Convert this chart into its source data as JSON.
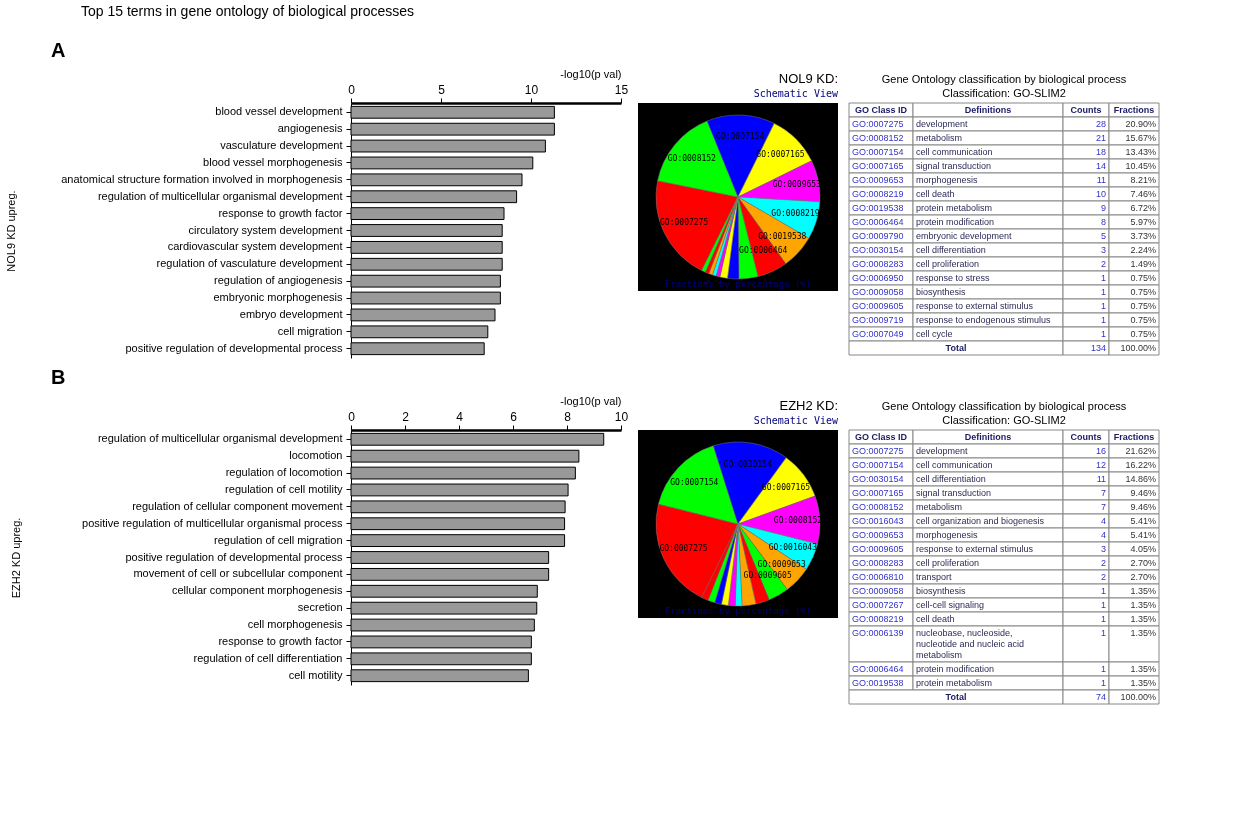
{
  "chart_data": [
    {
      "type": "bar",
      "orientation": "horizontal",
      "title": "Top 15 terms in gene ontology of biological processes",
      "annotations": [
        "A"
      ],
      "xlabel": "-log10(p val)",
      "ylabel": "NOL9 KD upreg.",
      "color": "#999999",
      "categories": [
        "blood vessel development",
        "angiogenesis",
        "vasculature development",
        "blood vessel morphogenesis",
        "anatomical structure formation involved in morphogenesis",
        "regulation of multicellular organismal development",
        "response to growth factor",
        "circulatory system development",
        "cardiovascular system development",
        "regulation of vasculature development",
        "regulation of angiogenesis",
        "embryonic morphogenesis",
        "embryo development",
        "cell migration",
        "positive regulation of developmental process"
      ],
      "values": [
        11.3,
        11.3,
        10.8,
        10.1,
        9.5,
        9.2,
        8.5,
        8.4,
        8.4,
        8.4,
        8.3,
        8.3,
        8.0,
        7.6,
        7.4
      ],
      "xlim": [
        0,
        15
      ],
      "xticks": [
        0,
        5,
        10,
        15
      ]
    },
    {
      "type": "pie",
      "title": "NOL9 KD:",
      "subtitle": "Schematic View",
      "annotations": [
        "Fractions by percentage (%)"
      ],
      "categories": [
        "GO:0007275",
        "GO:0008152",
        "GO:0007154",
        "GO:0007165",
        "GO:0009653",
        "GO:0008219",
        "GO:0019538",
        "GO:0006464",
        null,
        null,
        null,
        null,
        null,
        null,
        null,
        null
      ],
      "values": [
        20.9,
        15.67,
        13.43,
        10.45,
        8.21,
        7.46,
        6.72,
        5.97,
        3.73,
        2.24,
        1.49,
        0.75,
        0.75,
        0.75,
        0.75,
        0.75
      ],
      "colors": [
        "#ff0000",
        "#00ff00",
        "#0000ff",
        "#ffff00",
        "#ff00ff",
        "#00ffff",
        "#ffa500",
        "#ff0000",
        "#00ff00",
        "#0000ff",
        "#ffff00",
        "#ff00ff",
        "#00ffff",
        "#ffa500",
        "#ff0000",
        "#00ff00"
      ]
    },
    {
      "type": "other",
      "title": "Gene Ontology classification by biological process",
      "subtitle": "Classification: GO-SLIM2",
      "categories": [
        "GO Class ID",
        "Definitions",
        "Counts",
        "Fractions"
      ],
      "cell_labels": [
        [
          "GO:0007275",
          "development",
          "28",
          "20.90%"
        ],
        [
          "GO:0008152",
          "metabolism",
          "21",
          "15.67%"
        ],
        [
          "GO:0007154",
          "cell communication",
          "18",
          "13.43%"
        ],
        [
          "GO:0007165",
          "signal transduction",
          "14",
          "10.45%"
        ],
        [
          "GO:0009653",
          "morphogenesis",
          "11",
          "8.21%"
        ],
        [
          "GO:0008219",
          "cell death",
          "10",
          "7.46%"
        ],
        [
          "GO:0019538",
          "protein metabolism",
          "9",
          "6.72%"
        ],
        [
          "GO:0006464",
          "protein modification",
          "8",
          "5.97%"
        ],
        [
          "GO:0009790",
          "embryonic development",
          "5",
          "3.73%"
        ],
        [
          "GO:0030154",
          "cell differentiation",
          "3",
          "2.24%"
        ],
        [
          "GO:0008283",
          "cell proliferation",
          "2",
          "1.49%"
        ],
        [
          "GO:0006950",
          "response to stress",
          "1",
          "0.75%"
        ],
        [
          "GO:0009058",
          "biosynthesis",
          "1",
          "0.75%"
        ],
        [
          "GO:0009605",
          "response to external stimulus",
          "1",
          "0.75%"
        ],
        [
          "GO:0009719",
          "response to endogenous stimulus",
          "1",
          "0.75%"
        ],
        [
          "GO:0007049",
          "cell cycle",
          "1",
          "0.75%"
        ],
        [
          "Total",
          null,
          "134",
          "100.00%"
        ]
      ]
    },
    {
      "type": "bar",
      "orientation": "horizontal",
      "annotations": [
        "B"
      ],
      "xlabel": "-log10(p val)",
      "ylabel": "EZH2 KD upreg.",
      "color": "#999999",
      "categories": [
        "regulation of multicellular organismal development",
        "locomotion",
        "regulation of locomotion",
        "regulation of cell motility",
        "regulation of cellular component movement",
        "positive regulation of multicellular organismal process",
        "regulation of cell migration",
        "positive regulation of developmental process",
        "movement of cell or subcellular component",
        "cellular component morphogenesis",
        "secretion",
        "cell morphogenesis",
        "response to growth factor",
        "regulation of cell differentiation",
        "cell motility"
      ],
      "values": [
        9.36,
        8.44,
        8.31,
        8.04,
        7.93,
        7.91,
        7.91,
        7.32,
        7.32,
        6.9,
        6.88,
        6.79,
        6.68,
        6.68,
        6.57
      ],
      "xlim": [
        0,
        10
      ],
      "xticks": [
        0,
        2,
        4,
        6,
        8,
        10
      ]
    },
    {
      "type": "pie",
      "title": "EZH2 KD:",
      "subtitle": "Schematic View",
      "annotations": [
        "Fractions by percentage (%)"
      ],
      "categories": [
        "GO:0007275",
        "GO:0007154",
        "GO:0030154",
        "GO:0007165",
        "GO:0008152",
        "GO:0016043",
        "GO:0009653",
        "GO:0009605",
        null,
        null,
        null,
        null,
        null,
        null,
        null,
        null
      ],
      "values": [
        21.62,
        16.22,
        14.86,
        9.46,
        9.46,
        5.41,
        5.41,
        4.05,
        2.7,
        2.7,
        1.35,
        1.35,
        1.35,
        1.35,
        1.35,
        1.35
      ],
      "colors": [
        "#ff0000",
        "#00ff00",
        "#0000ff",
        "#ffff00",
        "#ff00ff",
        "#00ffff",
        "#ffa500",
        "#00ff00",
        "#ff0000",
        "#ffa500",
        "#00ffff",
        "#ff00ff",
        "#ffff00",
        "#0000ff",
        "#00ff00",
        "#ff0000"
      ]
    },
    {
      "type": "other",
      "title": "Gene Ontology classification by biological process",
      "subtitle": "Classification: GO-SLIM2",
      "categories": [
        "GO Class ID",
        "Definitions",
        "Counts",
        "Fractions"
      ],
      "cell_labels": [
        [
          "GO:0007275",
          "development",
          "16",
          "21.62%"
        ],
        [
          "GO:0007154",
          "cell communication",
          "12",
          "16.22%"
        ],
        [
          "GO:0030154",
          "cell differentiation",
          "11",
          "14.86%"
        ],
        [
          "GO:0007165",
          "signal transduction",
          "7",
          "9.46%"
        ],
        [
          "GO:0008152",
          "metabolism",
          "7",
          "9.46%"
        ],
        [
          "GO:0016043",
          "cell organization and biogenesis",
          "4",
          "5.41%"
        ],
        [
          "GO:0009653",
          "morphogenesis",
          "4",
          "5.41%"
        ],
        [
          "GO:0009605",
          "response to external stimulus",
          "3",
          "4.05%"
        ],
        [
          "GO:0008283",
          "cell proliferation",
          "2",
          "2.70%"
        ],
        [
          "GO:0006810",
          "transport",
          "2",
          "2.70%"
        ],
        [
          "GO:0009058",
          "biosynthesis",
          "1",
          "1.35%"
        ],
        [
          "GO:0007267",
          "cell-cell signaling",
          "1",
          "1.35%"
        ],
        [
          "GO:0008219",
          "cell death",
          "1",
          "1.35%"
        ],
        [
          "GO:0006139",
          "nucleobase, nucleoside, nucleotide and nucleic acid metabolism",
          "1",
          "1.35%"
        ],
        [
          "GO:0006464",
          "protein modification",
          "1",
          "1.35%"
        ],
        [
          "GO:0019538",
          "protein metabolism",
          "1",
          "1.35%"
        ],
        [
          "Total",
          null,
          "74",
          "100.00%"
        ]
      ]
    }
  ]
}
